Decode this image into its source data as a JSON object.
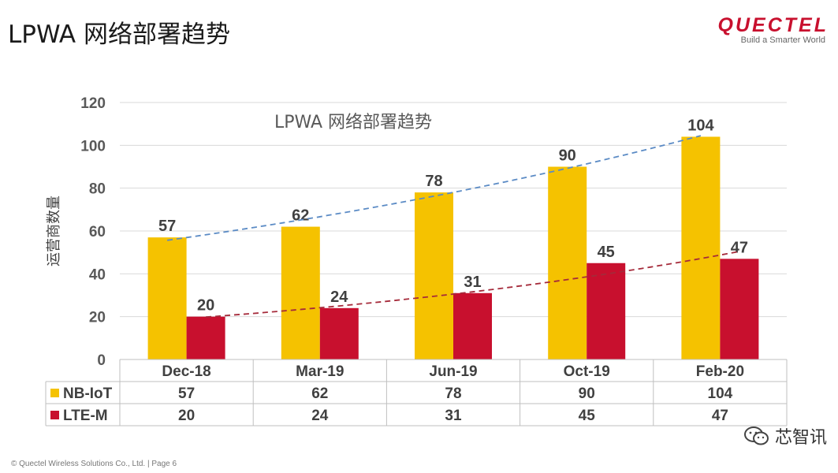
{
  "slide": {
    "title": "LPWA 网络部署趋势",
    "footer": "© Quectel Wireless Solutions Co., Ltd. | Page 6"
  },
  "logo": {
    "name": "QUECTEL",
    "tagline": "Build a Smarter World"
  },
  "watermark": {
    "text": "芯智讯",
    "icon": "wechat-icon"
  },
  "colors": {
    "nb_iot": "#F5C200",
    "lte_m": "#C8102E",
    "nb_trend": "#5B8BC5",
    "lte_trend": "#A52A3A"
  },
  "chart_data": {
    "type": "bar",
    "title": "LPWA 网络部署趋势",
    "ylabel": "运营商数量",
    "xlabel": "",
    "categories": [
      "Dec-18",
      "Mar-19",
      "Jun-19",
      "Oct-19",
      "Feb-20"
    ],
    "series": [
      {
        "name": "NB-IoT",
        "values": [
          57,
          62,
          78,
          90,
          104
        ]
      },
      {
        "name": "LTE-M",
        "values": [
          20,
          24,
          31,
          45,
          47
        ]
      }
    ],
    "ylim": [
      0,
      120
    ],
    "yticks": [
      0,
      20,
      40,
      60,
      80,
      100,
      120
    ],
    "grid": true,
    "trendlines": true,
    "data_table": true
  }
}
